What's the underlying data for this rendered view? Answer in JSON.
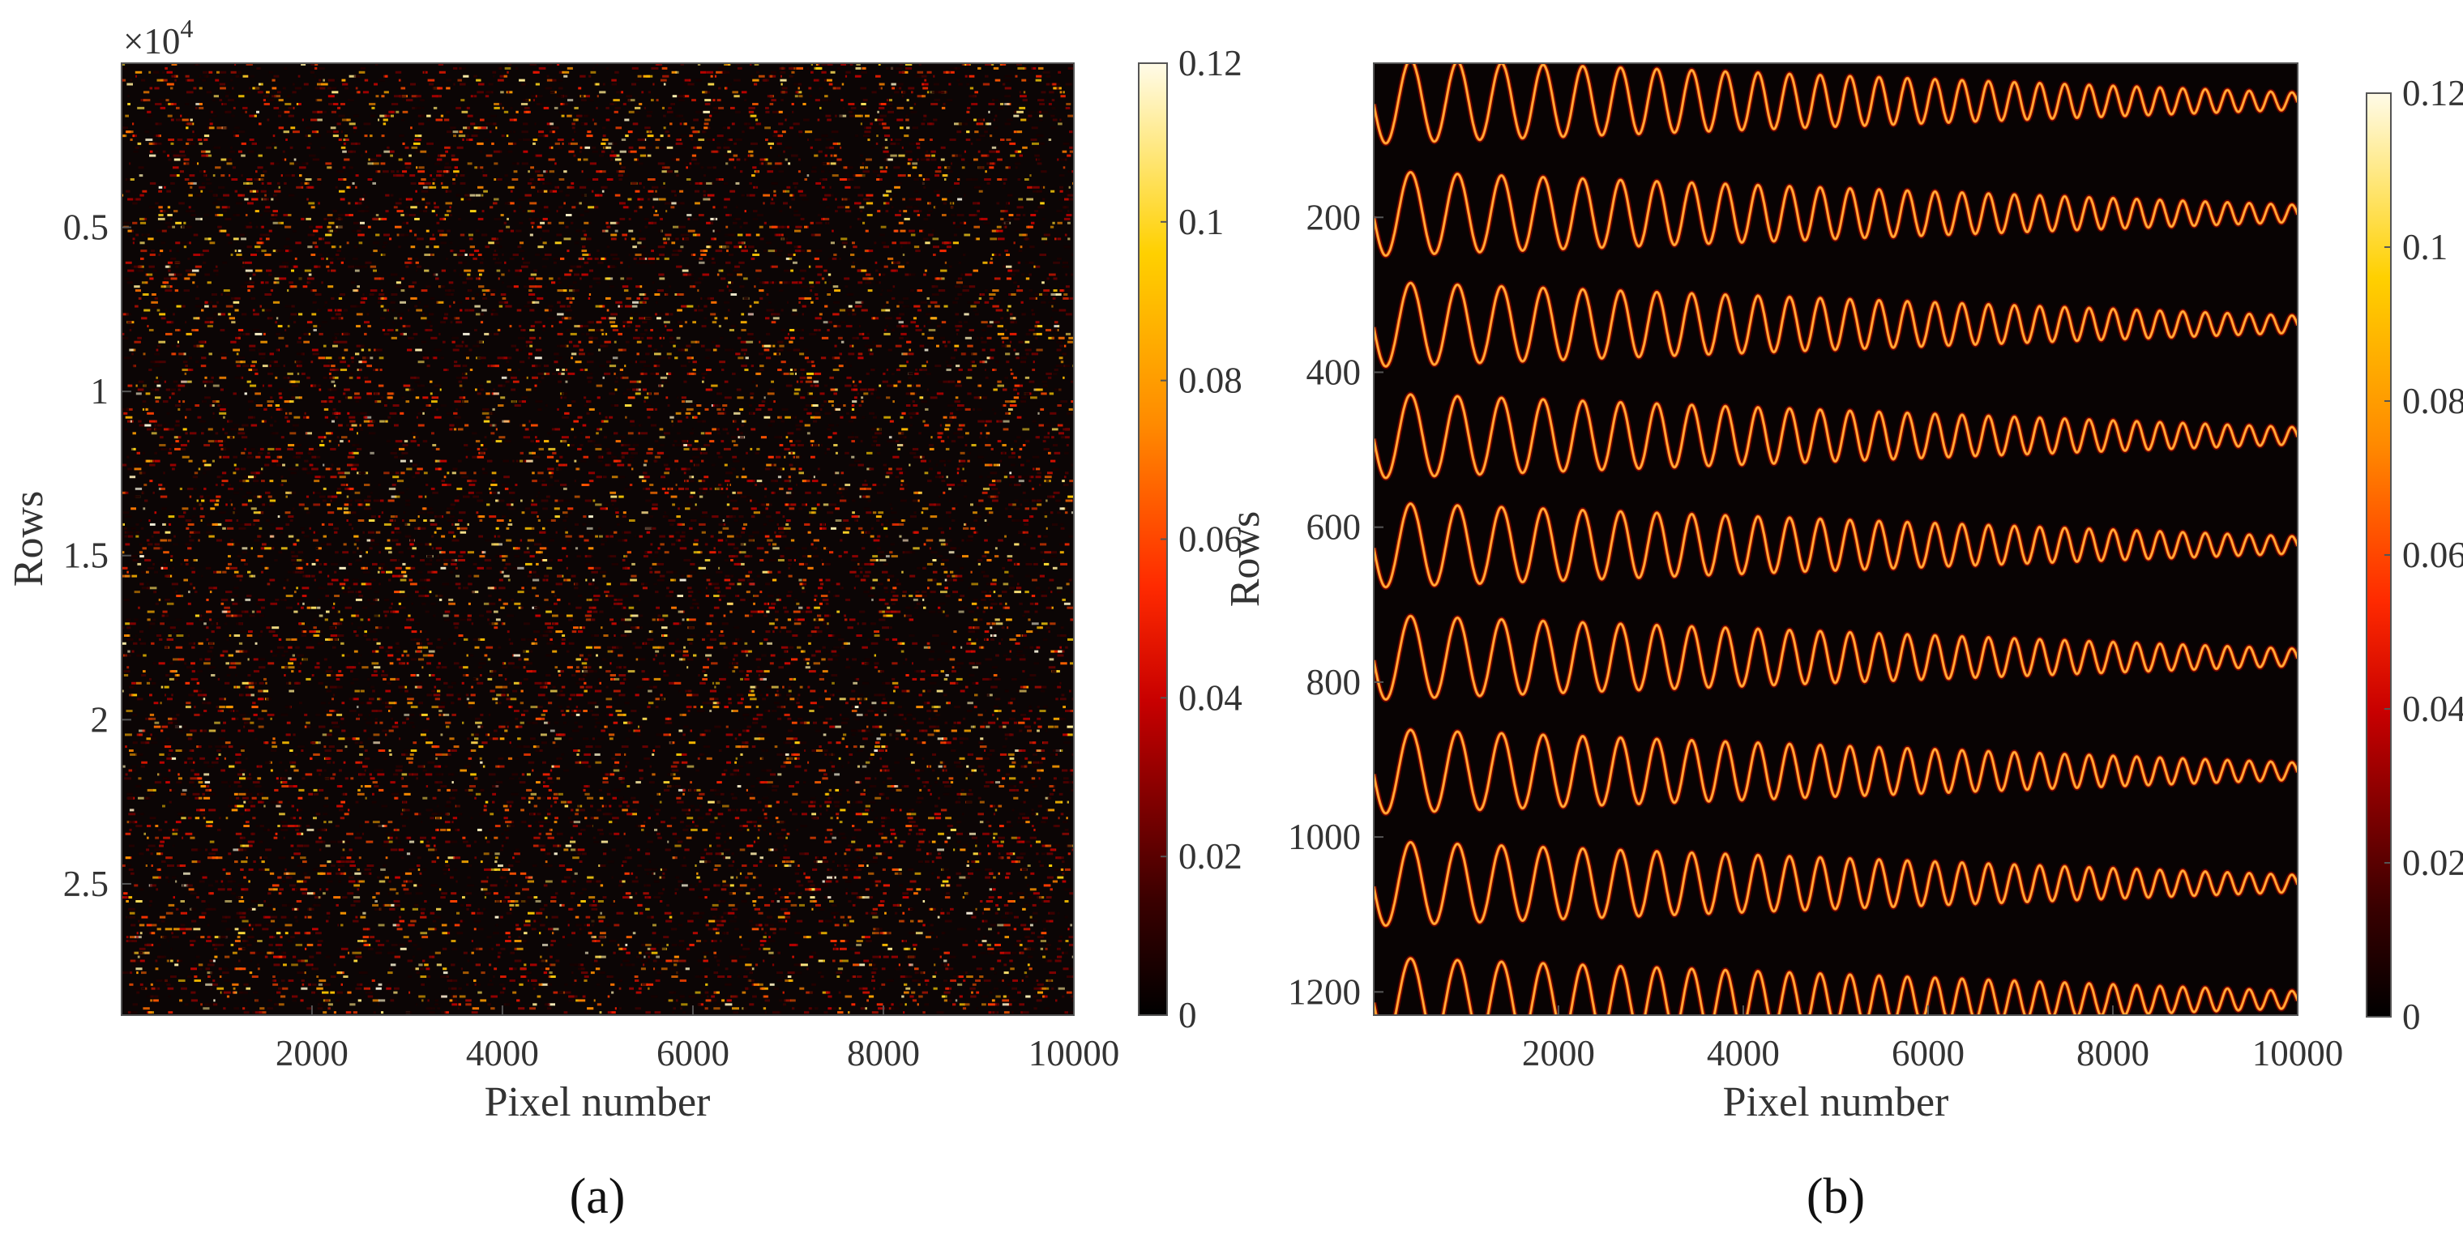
{
  "chart_data": [
    {
      "type": "heatmap",
      "panel_label": "(a)",
      "xlabel": "Pixel number",
      "ylabel": "Rows",
      "xlim": [
        1,
        10000
      ],
      "ylim": [
        1,
        29000
      ],
      "y_exponent_label": "×10",
      "y_exponent_power": "4",
      "x_ticks": [
        2000,
        4000,
        6000,
        8000,
        10000
      ],
      "x_tick_labels": [
        "2000",
        "4000",
        "6000",
        "8000",
        "10000"
      ],
      "y_ticks": [
        5000,
        10000,
        15000,
        20000,
        25000
      ],
      "y_tick_labels": [
        "0.5",
        "1",
        "1.5",
        "2",
        "2.5"
      ],
      "colorbar": {
        "range": [
          0,
          0.12
        ],
        "ticks": [
          0,
          0.02,
          0.04,
          0.06,
          0.08,
          0.1,
          0.12
        ],
        "tick_labels": [
          "0",
          "0.02",
          "0.04",
          "0.06",
          "0.08",
          "0.1",
          "0.12"
        ],
        "colormap": "hot"
      }
    },
    {
      "type": "heatmap",
      "panel_label": "(b)",
      "xlabel": "Pixel number",
      "ylabel": "Rows",
      "xlim": [
        1,
        10000
      ],
      "ylim": [
        1,
        1230
      ],
      "x_ticks": [
        2000,
        4000,
        6000,
        8000,
        10000
      ],
      "x_tick_labels": [
        "2000",
        "4000",
        "6000",
        "8000",
        "10000"
      ],
      "y_ticks": [
        200,
        400,
        600,
        800,
        1000,
        1200
      ],
      "y_tick_labels": [
        "200",
        "400",
        "600",
        "800",
        "1000",
        "1200"
      ],
      "band_centers": [
        50,
        195,
        338,
        482,
        623,
        768,
        915,
        1060,
        1210
      ],
      "band_half_amplitude": 55,
      "colorbar": {
        "range": [
          0,
          0.12
        ],
        "ticks": [
          0,
          0.02,
          0.04,
          0.06,
          0.08,
          0.1,
          0.12
        ],
        "tick_labels": [
          "0",
          "0.02",
          "0.04",
          "0.06",
          "0.08",
          "0.1",
          "0.12"
        ],
        "colormap": "hot"
      }
    }
  ],
  "colors": {
    "background": "#0b0505",
    "hot_low": "#000000",
    "hot_mid": "#ff3010",
    "hot_high": "#fff8d0"
  }
}
